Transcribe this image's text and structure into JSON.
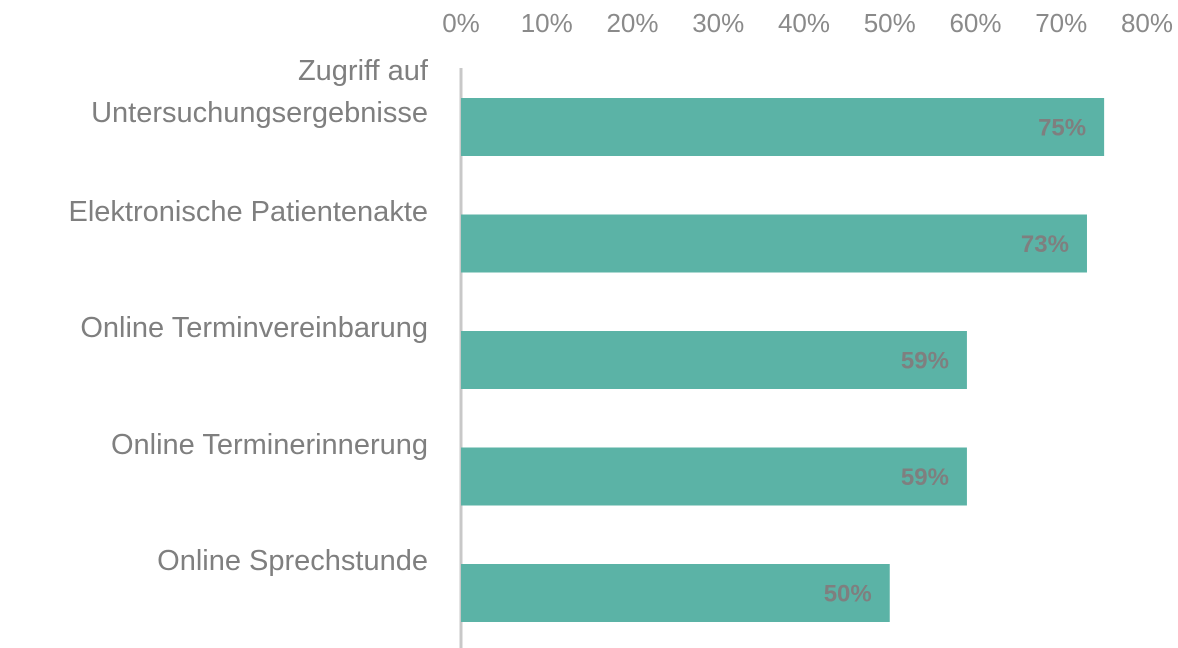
{
  "chart_data": {
    "type": "barh",
    "categories": [
      "Zugriff auf Untersuchungsergebnisse",
      "Elektronische Patientenakte",
      "Online Terminvereinbarung",
      "Online Terminerinnerung",
      "Online Sprechstunde"
    ],
    "values": [
      75,
      73,
      59,
      59,
      50
    ],
    "value_labels": [
      "75%",
      "73%",
      "59%",
      "59%",
      "50%"
    ],
    "color": "#5bb3a6",
    "xlim": [
      0,
      80
    ],
    "xticks": [
      {
        "value": 0,
        "label": "0%"
      },
      {
        "value": 10,
        "label": "10%"
      },
      {
        "value": 20,
        "label": "20%"
      },
      {
        "value": 30,
        "label": "30%"
      },
      {
        "value": 40,
        "label": "40%"
      },
      {
        "value": 50,
        "label": "50%"
      },
      {
        "value": 60,
        "label": "60%"
      },
      {
        "value": 70,
        "label": "70%"
      },
      {
        "value": 80,
        "label": "80%"
      }
    ]
  }
}
